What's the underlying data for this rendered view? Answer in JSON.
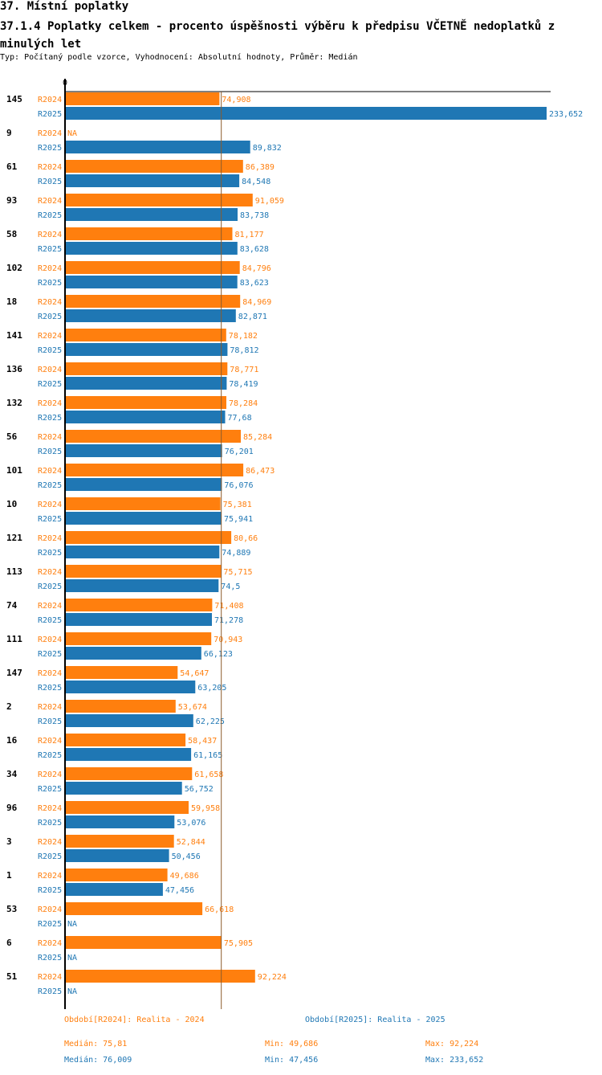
{
  "header": {
    "section_title": "37. Místní poplatky",
    "chart_title": "37.1.4 Poplatky celkem - procento úspěšnosti výběru k předpisu VČETNĚ nedoplatků z minulých let",
    "subtitle": "Typ: Počítaný podle vzorce, Vyhodnocení: Absolutní hodnoty, Průměr: Medián"
  },
  "colors": {
    "r2024": "#ff7f0e",
    "r2025": "#1f77b4"
  },
  "chart_data": {
    "type": "bar",
    "orientation": "horizontal",
    "axis_zero_label": "0",
    "na_label": "NA",
    "xlim": [
      0,
      233.652
    ],
    "median_line": 75.81,
    "series_names": [
      "R2024",
      "R2025"
    ],
    "categories": [
      "145",
      "9",
      "61",
      "93",
      "58",
      "102",
      "18",
      "141",
      "136",
      "132",
      "56",
      "101",
      "10",
      "121",
      "113",
      "74",
      "111",
      "147",
      "2",
      "16",
      "34",
      "96",
      "3",
      "1",
      "53",
      "6",
      "51"
    ],
    "series": [
      {
        "name": "R2024",
        "values": [
          74.908,
          null,
          86.389,
          91.059,
          81.177,
          84.796,
          84.969,
          78.182,
          78.771,
          78.284,
          85.284,
          86.473,
          75.381,
          80.66,
          75.715,
          71.408,
          70.943,
          54.647,
          53.674,
          58.437,
          61.658,
          59.958,
          52.844,
          49.686,
          66.618,
          75.905,
          92.224
        ],
        "labels": [
          "74,908",
          "NA",
          "86,389",
          "91,059",
          "81,177",
          "84,796",
          "84,969",
          "78,182",
          "78,771",
          "78,284",
          "85,284",
          "86,473",
          "75,381",
          "80,66",
          "75,715",
          "71,408",
          "70,943",
          "54,647",
          "53,674",
          "58,437",
          "61,658",
          "59,958",
          "52,844",
          "49,686",
          "66,618",
          "75,905",
          "92,224"
        ]
      },
      {
        "name": "R2025",
        "values": [
          233.652,
          89.832,
          84.548,
          83.738,
          83.628,
          83.623,
          82.871,
          78.812,
          78.419,
          77.68,
          76.201,
          76.076,
          75.941,
          74.889,
          74.5,
          71.278,
          66.123,
          63.205,
          62.225,
          61.165,
          56.752,
          53.076,
          50.456,
          47.456,
          null,
          null,
          null
        ],
        "labels": [
          "233,652",
          "89,832",
          "84,548",
          "83,738",
          "83,628",
          "83,623",
          "82,871",
          "78,812",
          "78,419",
          "77,68",
          "76,201",
          "76,076",
          "75,941",
          "74,889",
          "74,5",
          "71,278",
          "66,123",
          "63,205",
          "62,225",
          "61,165",
          "56,752",
          "53,076",
          "50,456",
          "47,456",
          "NA",
          "NA",
          "NA"
        ]
      }
    ]
  },
  "legend": {
    "r2024_label": "Období[R2024]: Realita - 2024",
    "r2025_label": "Období[R2025]: Realita - 2025",
    "r2024_median": "Medián: 75,81",
    "r2024_min": "Min: 49,686",
    "r2024_max": "Max: 92,224",
    "r2025_median": "Medián: 76,009",
    "r2025_min": "Min: 47,456",
    "r2025_max": "Max: 233,652"
  }
}
